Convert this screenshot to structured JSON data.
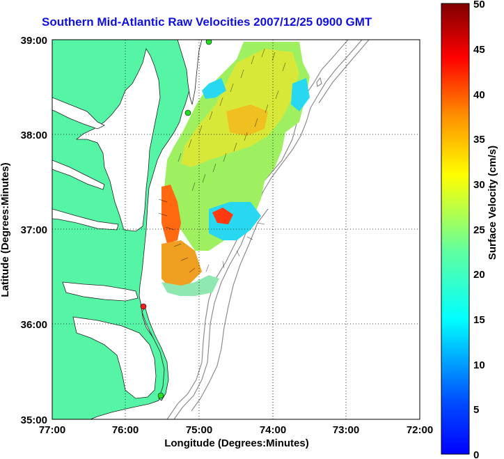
{
  "title": "Southern Mid-Atlantic Raw Velocities 2007/12/25 0900 GMT",
  "xaxis": {
    "label": "Longitude (Degrees:Minutes)",
    "ticks": [
      "77:00",
      "76:00",
      "75:00",
      "74:00",
      "73:00",
      "72:00"
    ]
  },
  "yaxis": {
    "label": "Latitude (Degrees:Minutes)",
    "ticks": [
      "39:00",
      "38:00",
      "37:00",
      "36:00",
      "35:00"
    ]
  },
  "colorbar": {
    "label": "Surface Velocity (cm/s)",
    "ticks": [
      "50",
      "45",
      "40",
      "35",
      "30",
      "25",
      "20",
      "15",
      "10",
      "5",
      "0"
    ],
    "range": [
      0,
      50
    ]
  },
  "colors": {
    "land": "#55f5a5",
    "water": "#ffffff",
    "title": "#1010e0",
    "contour": "#888888",
    "station_green": "#22dd22",
    "station_red": "#ee2222"
  },
  "stations": [
    {
      "color": "green",
      "lon": -75.1,
      "lat": 39.0
    },
    {
      "color": "green",
      "lon": -75.15,
      "lat": 38.22
    },
    {
      "color": "red",
      "lon": -75.7,
      "lat": 36.2
    },
    {
      "color": "green",
      "lon": -75.5,
      "lat": 35.2
    }
  ]
}
